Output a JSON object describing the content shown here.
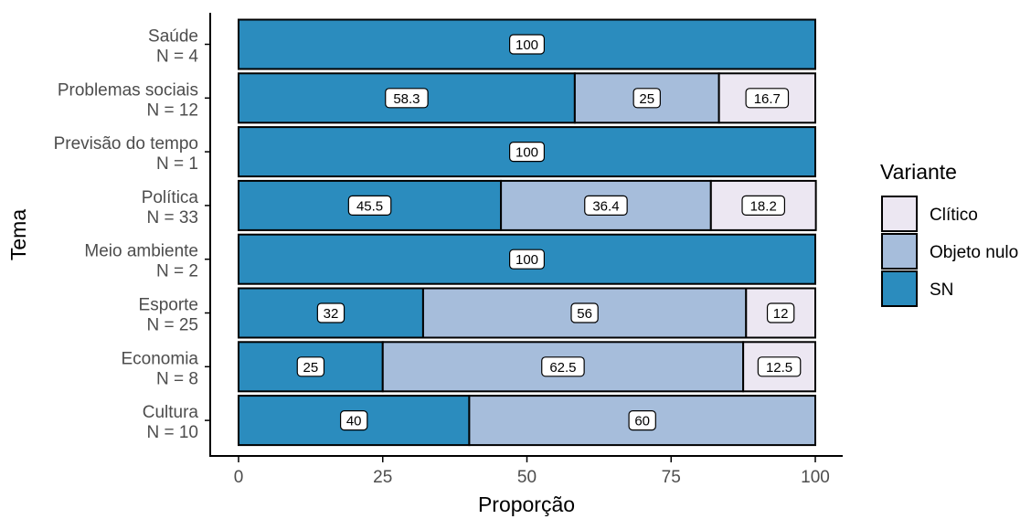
{
  "chart_data": {
    "type": "bar",
    "orientation": "horizontal",
    "stacked": true,
    "xlabel": "Proporção",
    "ylabel": "Tema",
    "xlim": [
      0,
      100
    ],
    "xticks": [
      0,
      25,
      50,
      75,
      100
    ],
    "grid": false,
    "legend": {
      "title": "Variante",
      "position": "right",
      "entries": [
        "Clítico",
        "Objeto nulo",
        "SN"
      ]
    },
    "categories": [
      {
        "name": "Saúde",
        "n": "N = 4"
      },
      {
        "name": "Problemas sociais",
        "n": "N = 12"
      },
      {
        "name": "Previsão do tempo",
        "n": "N = 1"
      },
      {
        "name": "Política",
        "n": "N = 33"
      },
      {
        "name": "Meio ambiente",
        "n": "N = 2"
      },
      {
        "name": "Esporte",
        "n": "N = 25"
      },
      {
        "name": "Economia",
        "n": "N = 8"
      },
      {
        "name": "Cultura",
        "n": "N = 10"
      }
    ],
    "series": [
      {
        "name": "SN",
        "color": "#2b8cbe",
        "values": [
          100,
          58.3,
          100,
          45.5,
          100,
          32,
          25,
          40
        ],
        "labels": [
          "100",
          "58.3",
          "100",
          "45.5",
          "100",
          "32",
          "25",
          "40"
        ]
      },
      {
        "name": "Objeto nulo",
        "color": "#a6bddb",
        "values": [
          0,
          25,
          0,
          36.4,
          0,
          56,
          62.5,
          60
        ],
        "labels": [
          "",
          "25",
          "",
          "36.4",
          "",
          "56",
          "62.5",
          "60"
        ]
      },
      {
        "name": "Clítico",
        "color": "#ece7f2",
        "values": [
          0,
          16.7,
          0,
          18.2,
          0,
          12,
          12.5,
          0
        ],
        "labels": [
          "",
          "16.7",
          "",
          "18.2",
          "",
          "12",
          "12.5",
          ""
        ]
      }
    ]
  }
}
